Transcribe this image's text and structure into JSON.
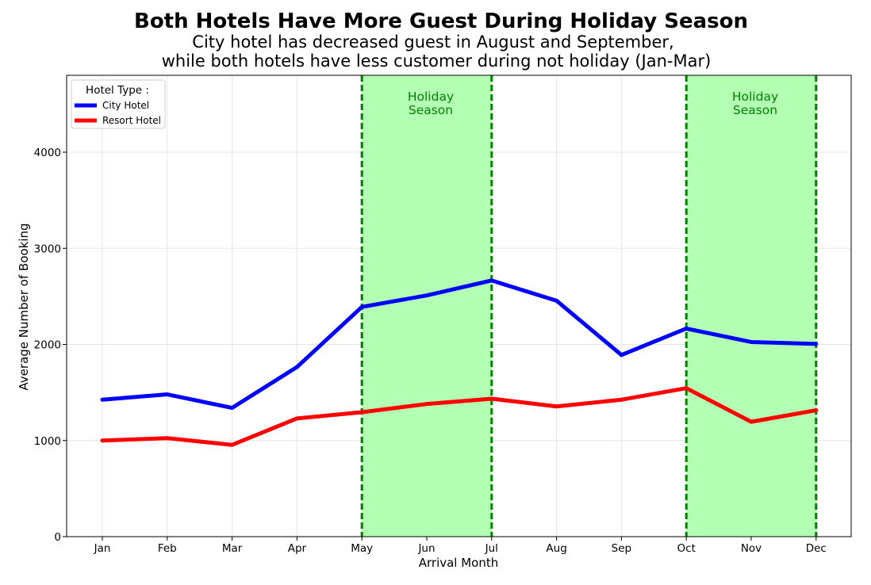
{
  "chart_data": {
    "type": "line",
    "title": "Both Hotels Have More Guest During Holiday Season",
    "subtitle_lines": [
      "City hotel has decreased guest in August and September,",
      "while both hotels have less customer during not holiday (Jan-Mar)"
    ],
    "xlabel": "Arrival Month",
    "ylabel": "Average Number of Booking",
    "categories": [
      "Jan",
      "Feb",
      "Mar",
      "Apr",
      "May",
      "Jun",
      "Jul",
      "Aug",
      "Sep",
      "Oct",
      "Nov",
      "Dec"
    ],
    "ylim": [
      0,
      4800
    ],
    "yticks": [
      0,
      1000,
      2000,
      3000,
      4000
    ],
    "grid": true,
    "legend": {
      "title": "Hotel Type :",
      "placement": "top-left"
    },
    "series": [
      {
        "name": "City Hotel",
        "color": "#0000ff",
        "values": [
          1425,
          1480,
          1340,
          1765,
          2390,
          2510,
          2665,
          2455,
          1890,
          2165,
          2025,
          2005
        ]
      },
      {
        "name": "Resort Hotel",
        "color": "#ff0000",
        "values": [
          1000,
          1025,
          955,
          1230,
          1295,
          1380,
          1435,
          1355,
          1425,
          1545,
          1195,
          1315
        ]
      }
    ],
    "highlight_bands": [
      {
        "label_lines": [
          "Holiday",
          "Season"
        ],
        "start": "May",
        "end": "Jul",
        "color": "#b3ffb3",
        "edge_color": "#008000"
      },
      {
        "label_lines": [
          "Holiday",
          "Season"
        ],
        "start": "Oct",
        "end": "Dec",
        "color": "#b3ffb3",
        "edge_color": "#008000"
      }
    ]
  }
}
